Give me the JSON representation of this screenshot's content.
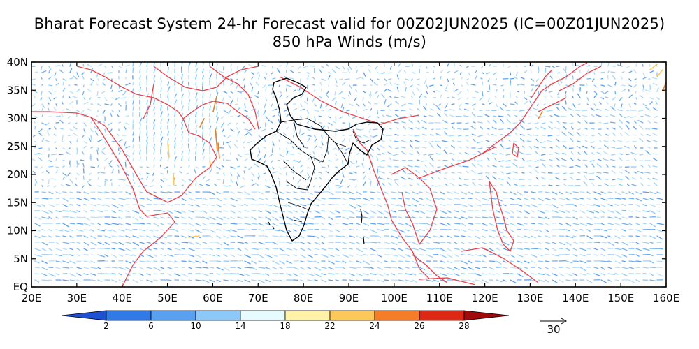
{
  "title_line1": "Bharat Forecast System 24-hr Forecast valid for 00Z02JUN2025 (IC=00Z01JUN2025)",
  "title_line2": "850 hPa Winds (m/s)",
  "map": {
    "lon_range": [
      20,
      160
    ],
    "lat_range": [
      0,
      40
    ],
    "lon_ticks": [
      "20E",
      "30E",
      "40E",
      "50E",
      "60E",
      "70E",
      "80E",
      "90E",
      "100E",
      "110E",
      "120E",
      "130E",
      "140E",
      "150E",
      "160E"
    ],
    "lat_ticks": [
      "EQ",
      "5N",
      "10N",
      "15N",
      "20N",
      "25N",
      "30N",
      "35N",
      "40N"
    ]
  },
  "colorbar": {
    "labels": [
      "2",
      "6",
      "10",
      "14",
      "18",
      "22",
      "24",
      "26",
      "28"
    ],
    "colors": [
      "#1e50d2",
      "#2f7ae6",
      "#5aa0f0",
      "#8cc8f8",
      "#e6fbff",
      "#fff2a8",
      "#fcc85a",
      "#f57d28",
      "#dc2814",
      "#a00a0a"
    ]
  },
  "vector_reference": {
    "label": "30"
  },
  "colors": {
    "coast": "#e8434c",
    "india_boundary": "#000000",
    "vector_default": "#7ab8ee"
  }
}
